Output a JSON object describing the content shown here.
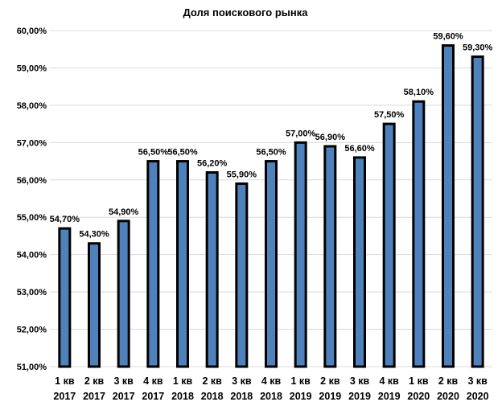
{
  "chart_data": {
    "type": "bar",
    "title": "Доля поискового рынка",
    "categories": [
      [
        "1 кв",
        "2017"
      ],
      [
        "2 кв",
        "2017"
      ],
      [
        "3 кв",
        "2017"
      ],
      [
        "4 кв",
        "2017"
      ],
      [
        "1 кв",
        "2018"
      ],
      [
        "2 кв",
        "2018"
      ],
      [
        "3 кв",
        "2018"
      ],
      [
        "4 кв",
        "2018"
      ],
      [
        "1 кв",
        "2019"
      ],
      [
        "2 кв",
        "2019"
      ],
      [
        "3 кв",
        "2019"
      ],
      [
        "4 кв",
        "2019"
      ],
      [
        "1 кв",
        "2020"
      ],
      [
        "2 кв",
        "2020"
      ],
      [
        "3 кв",
        "2020"
      ]
    ],
    "values": [
      54.7,
      54.3,
      54.9,
      56.5,
      56.5,
      56.2,
      55.9,
      56.5,
      57.0,
      56.9,
      56.6,
      57.5,
      58.1,
      59.6,
      59.3
    ],
    "value_labels": [
      "54,70%",
      "54,30%",
      "54,90%",
      "56,50%",
      "56,50%",
      "56,20%",
      "55,90%",
      "56,50%",
      "57,00%",
      "56,90%",
      "56,60%",
      "57,50%",
      "58,10%",
      "59,60%",
      "59,30%"
    ],
    "y_ticks": [
      51,
      52,
      53,
      54,
      55,
      56,
      57,
      58,
      59,
      60
    ],
    "y_tick_labels": [
      "51,00%",
      "52,00%",
      "53,00%",
      "54,00%",
      "55,00%",
      "56,00%",
      "57,00%",
      "58,00%",
      "59,00%",
      "60,00%"
    ],
    "ylim": [
      51,
      60
    ],
    "xlabel": "",
    "ylabel": "",
    "grid": true,
    "legend": "none",
    "colors": {
      "bar_fill": "#4f81bd",
      "bar_stroke": "#000000",
      "grid": "#d9d9d9"
    }
  }
}
